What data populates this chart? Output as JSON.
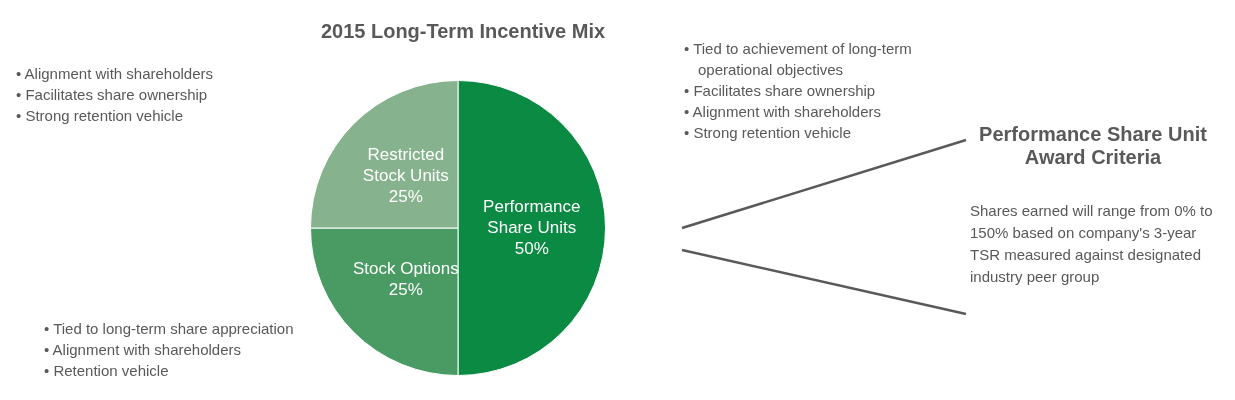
{
  "chart_data": {
    "type": "pie",
    "title": "2015 Long-Term Incentive Mix",
    "categories": [
      "Performance Share Units",
      "Stock Options",
      "Restricted Stock Units"
    ],
    "values": [
      50,
      25,
      25
    ],
    "value_labels": [
      "50%",
      "25%",
      "25%"
    ],
    "colors": [
      "#0a8a43",
      "#4a9a64",
      "#86b38d"
    ],
    "legend": false,
    "annotations": [
      "• Alignment with shareholders",
      "• Facilitates share ownership",
      "• Strong retention vehicle",
      "• Tied to achievement of long-term operational objectives",
      "• Facilitates share ownership",
      "• Alignment with shareholders",
      "• Strong retention vehicle",
      "Performance Share Unit Award Criteria",
      "Shares earned will range from 0% to 150% based on company's 3-year TSR measured against designated industry peer group",
      "• Tied to long-term share appreciation",
      "• Alignment with shareholders",
      "• Retention vehicle"
    ]
  }
}
